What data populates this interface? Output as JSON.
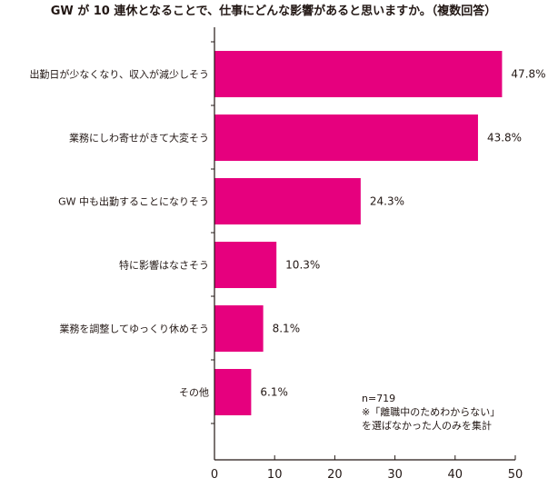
{
  "chart_data": {
    "type": "bar",
    "orientation": "horizontal",
    "title": "GW が 10 連休となることで、仕事にどんな影響があると思いますか。（複数回答）",
    "categories": [
      "出勤日が少なくなり、収入が減少しそう",
      "業務にしわ寄せがきて大変そう",
      "GW 中も出勤することになりそう",
      "特に影響はなさそう",
      "業務を調整してゆっくり休めそう",
      "その他"
    ],
    "values": [
      47.8,
      43.8,
      24.3,
      10.3,
      8.1,
      6.1
    ],
    "value_labels": [
      "47.8%",
      "43.8%",
      "24.3%",
      "10.3%",
      "8.1%",
      "6.1%"
    ],
    "xlim": [
      0,
      50
    ],
    "xticks": [
      0,
      10,
      20,
      30,
      40,
      50
    ],
    "xtick_labels": [
      "0",
      "10",
      "20",
      "30",
      "40",
      "50"
    ],
    "grid": false,
    "bar_color": "#e6007e",
    "axis_color": "#231815",
    "annotation": [
      "n=719",
      "※「離職中のためわからない」",
      "を選ばなかった人のみを集計"
    ]
  }
}
